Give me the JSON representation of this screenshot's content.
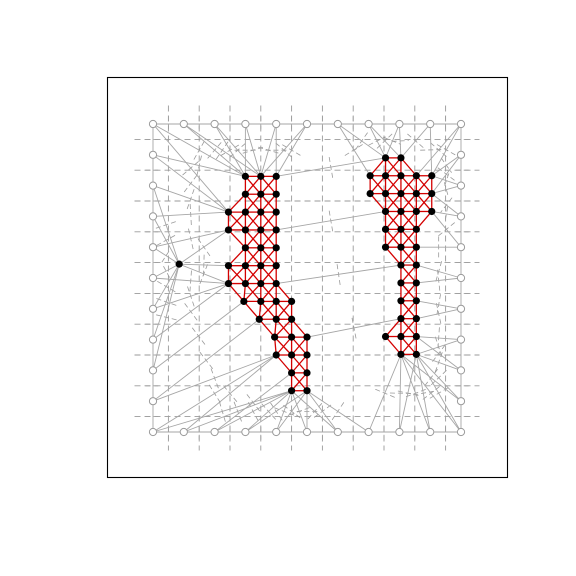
{
  "colors": {
    "background": "#ffffff",
    "frame": "#000000",
    "grid": "#9a9a9a",
    "voronoi": "#9a9a9a",
    "triangulation": "#a6a6a6",
    "constrained_edges": "#d40000",
    "interior_point": "#000000",
    "boundary_point": "#9a9a9a"
  },
  "chart_data": {
    "type": "scatter",
    "title": "",
    "xlabel": "",
    "ylabel": "",
    "xlim": [
      -1.5,
      11.5
    ],
    "ylim": [
      -1.5,
      11.5
    ],
    "grid": false,
    "legend": "none",
    "grid_lines_dashed": {
      "x": [
        0.5,
        1.5,
        2.5,
        3.5,
        4.5,
        5.5,
        6.5,
        7.5,
        8.5,
        9.5
      ],
      "y": [
        0.5,
        1.5,
        2.5,
        3.5,
        4.5,
        5.5,
        6.5,
        7.5,
        8.5,
        9.5
      ]
    },
    "boundary_points": {
      "x_positions": [
        0,
        1,
        2,
        3,
        4,
        5,
        6,
        7,
        8,
        9,
        10
      ],
      "y_positions": [
        0,
        1,
        2,
        3,
        4,
        5,
        6,
        7,
        8,
        9,
        10
      ]
    },
    "isolated_point": [
      0.85,
      5.45
    ],
    "left_region": {
      "row_y": [
        8.3,
        7.72,
        7.14,
        6.56,
        5.98,
        5.4,
        4.82,
        4.24,
        3.66,
        3.08,
        2.5,
        1.92,
        1.34
      ],
      "rows": [
        [
          3.0,
          3.5,
          4.0
        ],
        [
          3.0,
          3.5,
          4.0
        ],
        [
          2.45,
          3.0,
          3.5,
          4.0
        ],
        [
          2.45,
          3.0,
          3.5,
          4.0
        ],
        [
          3.0,
          3.5,
          4.0
        ],
        [
          2.45,
          3.0,
          3.5,
          4.0
        ],
        [
          2.45,
          3.0,
          3.5,
          4.0
        ],
        [
          2.95,
          3.5,
          4.0,
          4.5
        ],
        [
          3.45,
          4.0,
          4.5
        ],
        [
          3.95,
          4.5,
          5.0
        ],
        [
          4.0,
          4.5,
          5.0
        ],
        [
          4.5,
          5.0
        ],
        [
          4.5,
          5.0
        ]
      ]
    },
    "right_region": {
      "row_y": [
        8.9,
        8.32,
        7.74,
        7.16,
        6.58,
        6.0,
        5.42,
        4.84,
        4.26,
        3.68,
        3.1,
        2.52
      ],
      "rows": [
        [
          7.55,
          8.05
        ],
        [
          7.05,
          7.55,
          8.05,
          8.55,
          9.05
        ],
        [
          7.05,
          7.55,
          8.05,
          8.55,
          9.05
        ],
        [
          7.55,
          8.05,
          8.55,
          9.05
        ],
        [
          7.55,
          8.05,
          8.55
        ],
        [
          7.55,
          8.05,
          8.55
        ],
        [
          8.05,
          8.55
        ],
        [
          8.05,
          8.55
        ],
        [
          8.05,
          8.55
        ],
        [
          8.05,
          8.55
        ],
        [
          7.55,
          8.05,
          8.55
        ],
        [
          8.05,
          8.55
        ]
      ]
    }
  }
}
